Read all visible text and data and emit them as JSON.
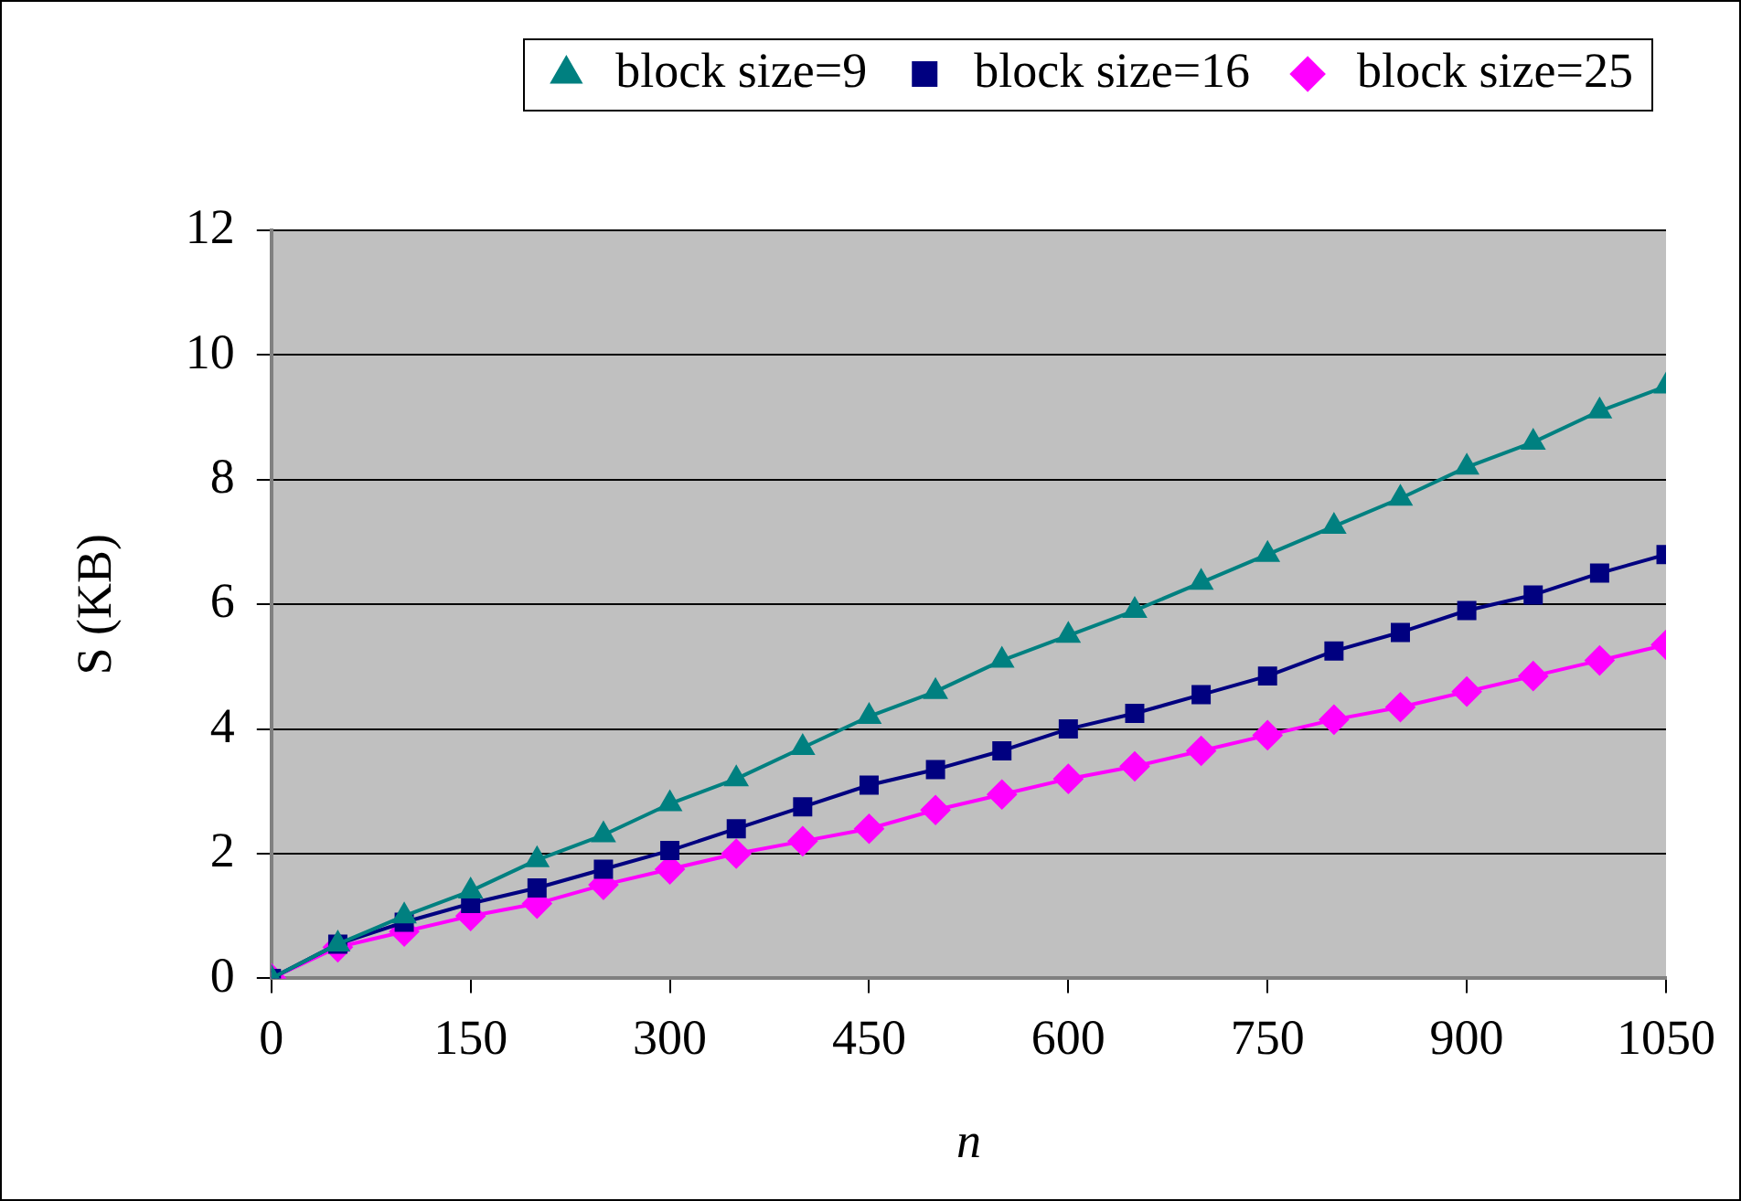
{
  "chart_data": {
    "type": "line",
    "xlabel": "n",
    "ylabel": "S (KB)",
    "x": [
      0,
      50,
      100,
      150,
      200,
      250,
      300,
      350,
      400,
      450,
      500,
      550,
      600,
      650,
      700,
      750,
      800,
      850,
      900,
      950,
      1000,
      1050
    ],
    "series": [
      {
        "name": "block size=9",
        "color": "#008080",
        "marker": "triangle",
        "values": [
          0,
          0.55,
          1.0,
          1.4,
          1.9,
          2.3,
          2.8,
          3.2,
          3.7,
          4.2,
          4.6,
          5.1,
          5.5,
          5.9,
          6.35,
          6.8,
          7.25,
          7.7,
          8.2,
          8.6,
          9.1,
          9.5
        ]
      },
      {
        "name": "block size=16",
        "color": "#000080",
        "marker": "square",
        "values": [
          0,
          0.55,
          0.9,
          1.2,
          1.45,
          1.75,
          2.05,
          2.4,
          2.75,
          3.1,
          3.35,
          3.65,
          4.0,
          4.25,
          4.55,
          4.85,
          5.25,
          5.55,
          5.9,
          6.15,
          6.5,
          6.8
        ]
      },
      {
        "name": "block size=25",
        "color": "#ff00ff",
        "marker": "diamond",
        "values": [
          0,
          0.5,
          0.75,
          1.0,
          1.2,
          1.5,
          1.75,
          2.0,
          2.2,
          2.4,
          2.7,
          2.95,
          3.2,
          3.4,
          3.65,
          3.9,
          4.15,
          4.35,
          4.6,
          4.85,
          5.1,
          5.35
        ]
      }
    ],
    "xlim": [
      0,
      1050
    ],
    "xticks": [
      0,
      150,
      300,
      450,
      600,
      750,
      900,
      1050
    ],
    "ylim": [
      0,
      12
    ],
    "yticks": [
      0,
      2,
      4,
      6,
      8,
      10,
      12
    ],
    "grid": "y",
    "legend": "top"
  }
}
